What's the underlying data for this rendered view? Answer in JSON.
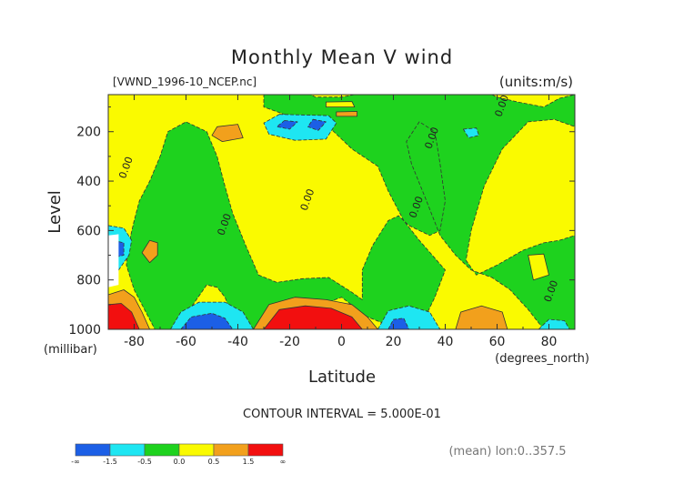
{
  "chart_data": {
    "type": "heatmap",
    "title": "Monthly Mean V wind",
    "file_label": "[VWND_1996-10_NCEP.nc]",
    "units_label": "(units:m/s)",
    "ylabel": "Level",
    "y_unit_label": "(millibar)",
    "xlabel": "Latitude",
    "x_unit_label": "(degrees_north)",
    "contour_interval_label": "CONTOUR INTERVAL = 5.000E-01",
    "footer_label": "(mean) lon:0..357.5",
    "xlim": [
      -90,
      90
    ],
    "ylim": [
      1000,
      50
    ],
    "x_ticks": [
      -80,
      -60,
      -40,
      -20,
      0,
      20,
      40,
      60,
      80
    ],
    "x_tick_labels": [
      "-80",
      "-60",
      "-40",
      "-20",
      "0",
      "20",
      "40",
      "60",
      "80"
    ],
    "y_ticks": [
      200,
      400,
      600,
      800,
      1000
    ],
    "y_tick_labels": [
      "200",
      "400",
      "600",
      "800",
      "1000"
    ],
    "contour_labels": [
      {
        "text": "0.00",
        "lat": 63,
        "lev": 100
      },
      {
        "text": "0.00",
        "lat": -82,
        "lev": 350
      },
      {
        "text": "0.00",
        "lat": -44,
        "lev": 580
      },
      {
        "text": "0.00",
        "lat": -12,
        "lev": 480
      },
      {
        "text": "0.00",
        "lat": 30,
        "lev": 510
      },
      {
        "text": "0.00",
        "lat": 36,
        "lev": 230
      },
      {
        "text": "0.00",
        "lat": 82,
        "lev": 850
      }
    ],
    "legend": {
      "colors": [
        "#1c5fe6",
        "#1ee6f2",
        "#1ed21e",
        "#fafa00",
        "#f2a01c",
        "#f20f0f"
      ],
      "labels": [
        "-∞",
        "-1.5",
        "-0.5",
        "0.0",
        "0.5",
        "1.5",
        "∞"
      ]
    },
    "field_colors": {
      "le_-1.5": "#1c5fe6",
      "-1.5_-0.5": "#1ee6f2",
      "-0.5_0.0": "#1ed21e",
      "0.0_0.5": "#fafa00",
      "0.5_1.5": "#f2a01c",
      "ge_1.5": "#f20f0f",
      "missing": "#ffffff"
    },
    "regions": [
      {
        "class": "0.0_0.5",
        "polygon": [
          [
            -90,
            50
          ],
          [
            90,
            50
          ],
          [
            90,
            1000
          ],
          [
            -90,
            1000
          ]
        ]
      },
      {
        "class": "-0.5_0.0",
        "polygon": [
          [
            -30,
            50
          ],
          [
            -12,
            50
          ],
          [
            -10,
            60
          ],
          [
            0,
            60
          ],
          [
            5,
            50
          ],
          [
            58,
            50
          ],
          [
            60,
            60
          ],
          [
            68,
            80
          ],
          [
            78,
            100
          ],
          [
            84,
            65
          ],
          [
            90,
            50
          ],
          [
            90,
            180
          ],
          [
            82,
            150
          ],
          [
            72,
            160
          ],
          [
            62,
            270
          ],
          [
            55,
            420
          ],
          [
            50,
            600
          ],
          [
            48,
            720
          ],
          [
            52,
            780
          ],
          [
            60,
            740
          ],
          [
            70,
            680
          ],
          [
            78,
            650
          ],
          [
            84,
            640
          ],
          [
            90,
            620
          ],
          [
            90,
            1000
          ],
          [
            78,
            1000
          ],
          [
            72,
            920
          ],
          [
            65,
            840
          ],
          [
            58,
            790
          ],
          [
            50,
            760
          ],
          [
            44,
            700
          ],
          [
            38,
            620
          ],
          [
            32,
            460
          ],
          [
            27,
            330
          ],
          [
            25,
            240
          ],
          [
            30,
            160
          ],
          [
            36,
            200
          ],
          [
            38,
            330
          ],
          [
            40,
            480
          ],
          [
            38,
            600
          ],
          [
            34,
            620
          ],
          [
            30,
            600
          ],
          [
            26,
            580
          ],
          [
            22,
            540
          ],
          [
            18,
            560
          ],
          [
            12,
            660
          ],
          [
            8,
            760
          ],
          [
            8,
            880
          ],
          [
            4,
            850
          ],
          [
            -5,
            790
          ],
          [
            -15,
            795
          ],
          [
            -25,
            810
          ],
          [
            -32,
            780
          ],
          [
            -37,
            660
          ],
          [
            -42,
            530
          ],
          [
            -45,
            420
          ],
          [
            -48,
            300
          ],
          [
            -52,
            200
          ],
          [
            -60,
            160
          ],
          [
            -67,
            200
          ],
          [
            -70,
            300
          ],
          [
            -74,
            400
          ],
          [
            -78,
            480
          ],
          [
            -80,
            560
          ],
          [
            -82,
            650
          ],
          [
            -83,
            740
          ],
          [
            -80,
            840
          ],
          [
            -76,
            920
          ],
          [
            -72,
            1000
          ],
          [
            -66,
            1000
          ],
          [
            -58,
            910
          ],
          [
            -52,
            820
          ],
          [
            -48,
            830
          ],
          [
            -45,
            870
          ],
          [
            -40,
            1000
          ],
          [
            -30,
            1000
          ],
          [
            -20,
            950
          ],
          [
            -10,
            910
          ],
          [
            0,
            870
          ],
          [
            10,
            950
          ],
          [
            22,
            1000
          ],
          [
            30,
            1000
          ],
          [
            36,
            870
          ],
          [
            40,
            760
          ],
          [
            30,
            640
          ],
          [
            24,
            560
          ],
          [
            18,
            440
          ],
          [
            14,
            340
          ],
          [
            4,
            270
          ],
          [
            -4,
            190
          ],
          [
            -10,
            150
          ],
          [
            -22,
            130
          ],
          [
            -30,
            100
          ]
        ]
      },
      {
        "class": "-1.5_-0.5",
        "polygon": [
          [
            -24,
            130
          ],
          [
            -5,
            135
          ],
          [
            -2,
            165
          ],
          [
            -6,
            230
          ],
          [
            -18,
            235
          ],
          [
            -28,
            210
          ],
          [
            -30,
            165
          ]
        ]
      },
      {
        "class": "le_-1.5",
        "polygon": [
          [
            -22,
            155
          ],
          [
            -17,
            160
          ],
          [
            -20,
            190
          ],
          [
            -25,
            180
          ]
        ]
      },
      {
        "class": "le_-1.5",
        "polygon": [
          [
            -11,
            150
          ],
          [
            -6,
            160
          ],
          [
            -9,
            195
          ],
          [
            -13,
            180
          ]
        ]
      },
      {
        "class": "-1.5_-0.5",
        "polygon": [
          [
            47,
            190
          ],
          [
            52,
            185
          ],
          [
            53,
            215
          ],
          [
            49,
            225
          ]
        ]
      },
      {
        "class": "0.5_1.5",
        "polygon": [
          [
            -48,
            180
          ],
          [
            -40,
            170
          ],
          [
            -38,
            225
          ],
          [
            -46,
            240
          ],
          [
            -50,
            215
          ]
        ]
      },
      {
        "class": "0.5_1.5",
        "polygon": [
          [
            -2,
            120
          ],
          [
            6,
            118
          ],
          [
            6,
            138
          ],
          [
            -2,
            138
          ]
        ]
      },
      {
        "class": "0.0_0.5",
        "polygon": [
          [
            -6,
            80
          ],
          [
            4,
            78
          ],
          [
            5,
            100
          ],
          [
            -6,
            100
          ]
        ]
      },
      {
        "class": "0.0_0.5",
        "polygon": [
          [
            72,
            700
          ],
          [
            78,
            695
          ],
          [
            80,
            780
          ],
          [
            74,
            800
          ]
        ]
      },
      {
        "class": "-1.5_-0.5",
        "polygon": [
          [
            -90,
            580
          ],
          [
            -84,
            590
          ],
          [
            -81,
            640
          ],
          [
            -82,
            700
          ],
          [
            -86,
            760
          ],
          [
            -90,
            770
          ]
        ]
      },
      {
        "class": "le_-1.5",
        "polygon": [
          [
            -88,
            640
          ],
          [
            -84,
            650
          ],
          [
            -84,
            700
          ],
          [
            -88,
            710
          ]
        ]
      },
      {
        "class": "0.5_1.5",
        "polygon": [
          [
            -74,
            640
          ],
          [
            -71,
            650
          ],
          [
            -71,
            700
          ],
          [
            -74,
            730
          ],
          [
            -77,
            690
          ]
        ]
      },
      {
        "class": "0.5_1.5",
        "polygon": [
          [
            -90,
            860
          ],
          [
            -84,
            840
          ],
          [
            -80,
            870
          ],
          [
            -77,
            930
          ],
          [
            -74,
            1000
          ],
          [
            -90,
            1000
          ]
        ]
      },
      {
        "class": "ge_1.5",
        "polygon": [
          [
            -90,
            900
          ],
          [
            -85,
            895
          ],
          [
            -81,
            930
          ],
          [
            -78,
            1000
          ],
          [
            -90,
            1000
          ]
        ]
      },
      {
        "class": "-1.5_-0.5",
        "polygon": [
          [
            -66,
            1000
          ],
          [
            -62,
            930
          ],
          [
            -55,
            890
          ],
          [
            -45,
            890
          ],
          [
            -38,
            930
          ],
          [
            -34,
            1000
          ]
        ]
      },
      {
        "class": "le_-1.5",
        "polygon": [
          [
            -62,
            1000
          ],
          [
            -58,
            950
          ],
          [
            -50,
            935
          ],
          [
            -45,
            955
          ],
          [
            -42,
            1000
          ]
        ]
      },
      {
        "class": "0.5_1.5",
        "polygon": [
          [
            -34,
            1000
          ],
          [
            -28,
            900
          ],
          [
            -18,
            870
          ],
          [
            -6,
            880
          ],
          [
            4,
            900
          ],
          [
            10,
            950
          ],
          [
            14,
            1000
          ]
        ]
      },
      {
        "class": "ge_1.5",
        "polygon": [
          [
            -30,
            1000
          ],
          [
            -24,
            920
          ],
          [
            -14,
            905
          ],
          [
            -4,
            915
          ],
          [
            4,
            950
          ],
          [
            8,
            1000
          ]
        ]
      },
      {
        "class": "-1.5_-0.5",
        "polygon": [
          [
            14,
            1000
          ],
          [
            18,
            925
          ],
          [
            26,
            905
          ],
          [
            34,
            930
          ],
          [
            38,
            1000
          ]
        ]
      },
      {
        "class": "le_-1.5",
        "polygon": [
          [
            18,
            1000
          ],
          [
            20,
            960
          ],
          [
            24,
            955
          ],
          [
            26,
            1000
          ]
        ]
      },
      {
        "class": "0.5_1.5",
        "polygon": [
          [
            44,
            1000
          ],
          [
            46,
            930
          ],
          [
            54,
            905
          ],
          [
            62,
            930
          ],
          [
            64,
            1000
          ]
        ]
      },
      {
        "class": "-1.5_-0.5",
        "polygon": [
          [
            76,
            1000
          ],
          [
            80,
            960
          ],
          [
            86,
            965
          ],
          [
            88,
            1000
          ]
        ]
      },
      {
        "class": "missing",
        "polygon": [
          [
            -90,
            620
          ],
          [
            -86,
            615
          ],
          [
            -86,
            820
          ],
          [
            -90,
            830
          ]
        ]
      }
    ]
  }
}
